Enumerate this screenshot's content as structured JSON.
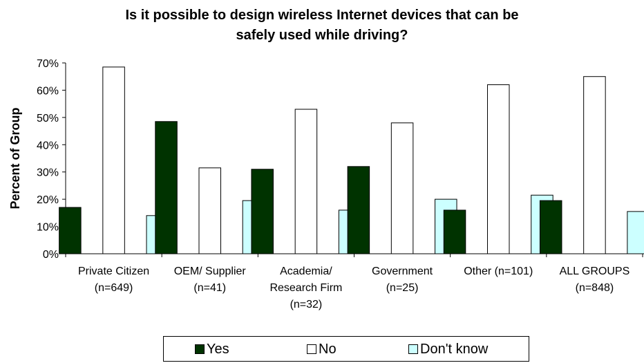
{
  "chart_data": {
    "type": "bar",
    "title_lines": [
      "Is it possible to design wireless Internet devices that can be",
      "safely used while driving?"
    ],
    "ylabel": "Percent of Group",
    "xlabel": "",
    "ylim": [
      0,
      70
    ],
    "y_ticks": [
      "0%",
      "10%",
      "20%",
      "30%",
      "40%",
      "50%",
      "60%",
      "70%"
    ],
    "grid": false,
    "legend_position": "bottom",
    "categories": [
      [
        "Private Citizen",
        "(n=649)"
      ],
      [
        "OEM/ Supplier",
        "(n=41)"
      ],
      [
        "Academia/",
        "Research Firm",
        "(n=32)"
      ],
      [
        "Government",
        "(n=25)"
      ],
      [
        "Other (n=101)"
      ],
      [
        "ALL GROUPS",
        "(n=848)"
      ]
    ],
    "series": [
      {
        "name": "Yes",
        "color": "#003300",
        "values": [
          17,
          48.5,
          31,
          32,
          16,
          19.5
        ]
      },
      {
        "name": "No",
        "color": "#ffffff",
        "values": [
          68.5,
          31.5,
          53,
          48,
          62,
          65
        ]
      },
      {
        "name": "Don't know",
        "color": "#ccffff",
        "values": [
          14,
          19.5,
          16,
          20,
          21.5,
          15.5
        ]
      }
    ]
  }
}
